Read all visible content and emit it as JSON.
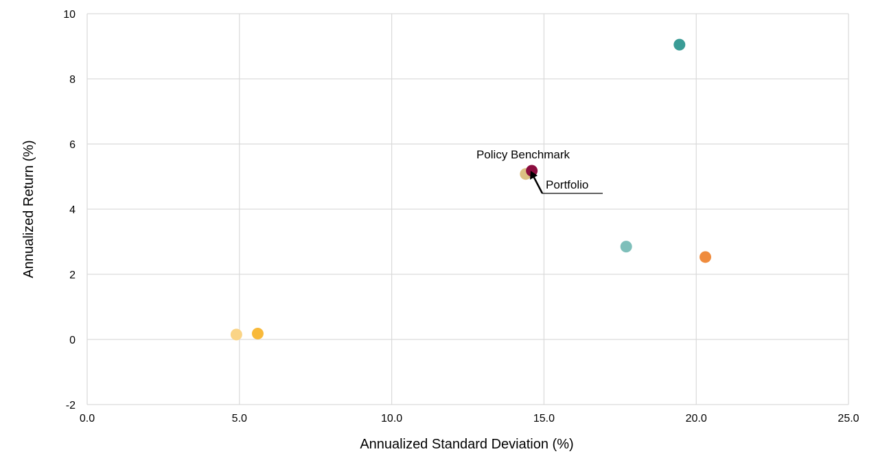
{
  "chart_data": {
    "type": "scatter",
    "title": "",
    "xlabel": "Annualized Standard Deviation (%)",
    "ylabel": "Annualized Return (%)",
    "xlim": [
      0,
      25
    ],
    "ylim": [
      -2,
      10
    ],
    "xticks": [
      0,
      5,
      10,
      15,
      20,
      25
    ],
    "xtick_labels": [
      "0.0",
      "5.0",
      "10.0",
      "15.0",
      "20.0",
      "25.0"
    ],
    "yticks": [
      -2,
      0,
      2,
      4,
      6,
      8,
      10
    ],
    "ytick_labels": [
      "-2",
      "0",
      "2",
      "4",
      "6",
      "8",
      "10"
    ],
    "grid": true,
    "legend": "none",
    "points": [
      {
        "x": 19.45,
        "y": 9.05,
        "color": "#3a9c96"
      },
      {
        "x": 17.7,
        "y": 2.85,
        "color": "#7ebfba"
      },
      {
        "x": 20.3,
        "y": 2.53,
        "color": "#ef8b3d"
      },
      {
        "x": 4.9,
        "y": 0.15,
        "color": "#fad486"
      },
      {
        "x": 5.6,
        "y": 0.18,
        "color": "#f8b93a"
      },
      {
        "x": 14.4,
        "y": 5.08,
        "color": "#dcc083"
      },
      {
        "x": 14.6,
        "y": 5.18,
        "color": "#8b0d3f"
      }
    ],
    "annotations": [
      {
        "text": "Policy Benchmark",
        "x": 14.4,
        "y": 5.08
      },
      {
        "text": "Portfolio",
        "x": 14.6,
        "y": 5.18
      }
    ]
  }
}
